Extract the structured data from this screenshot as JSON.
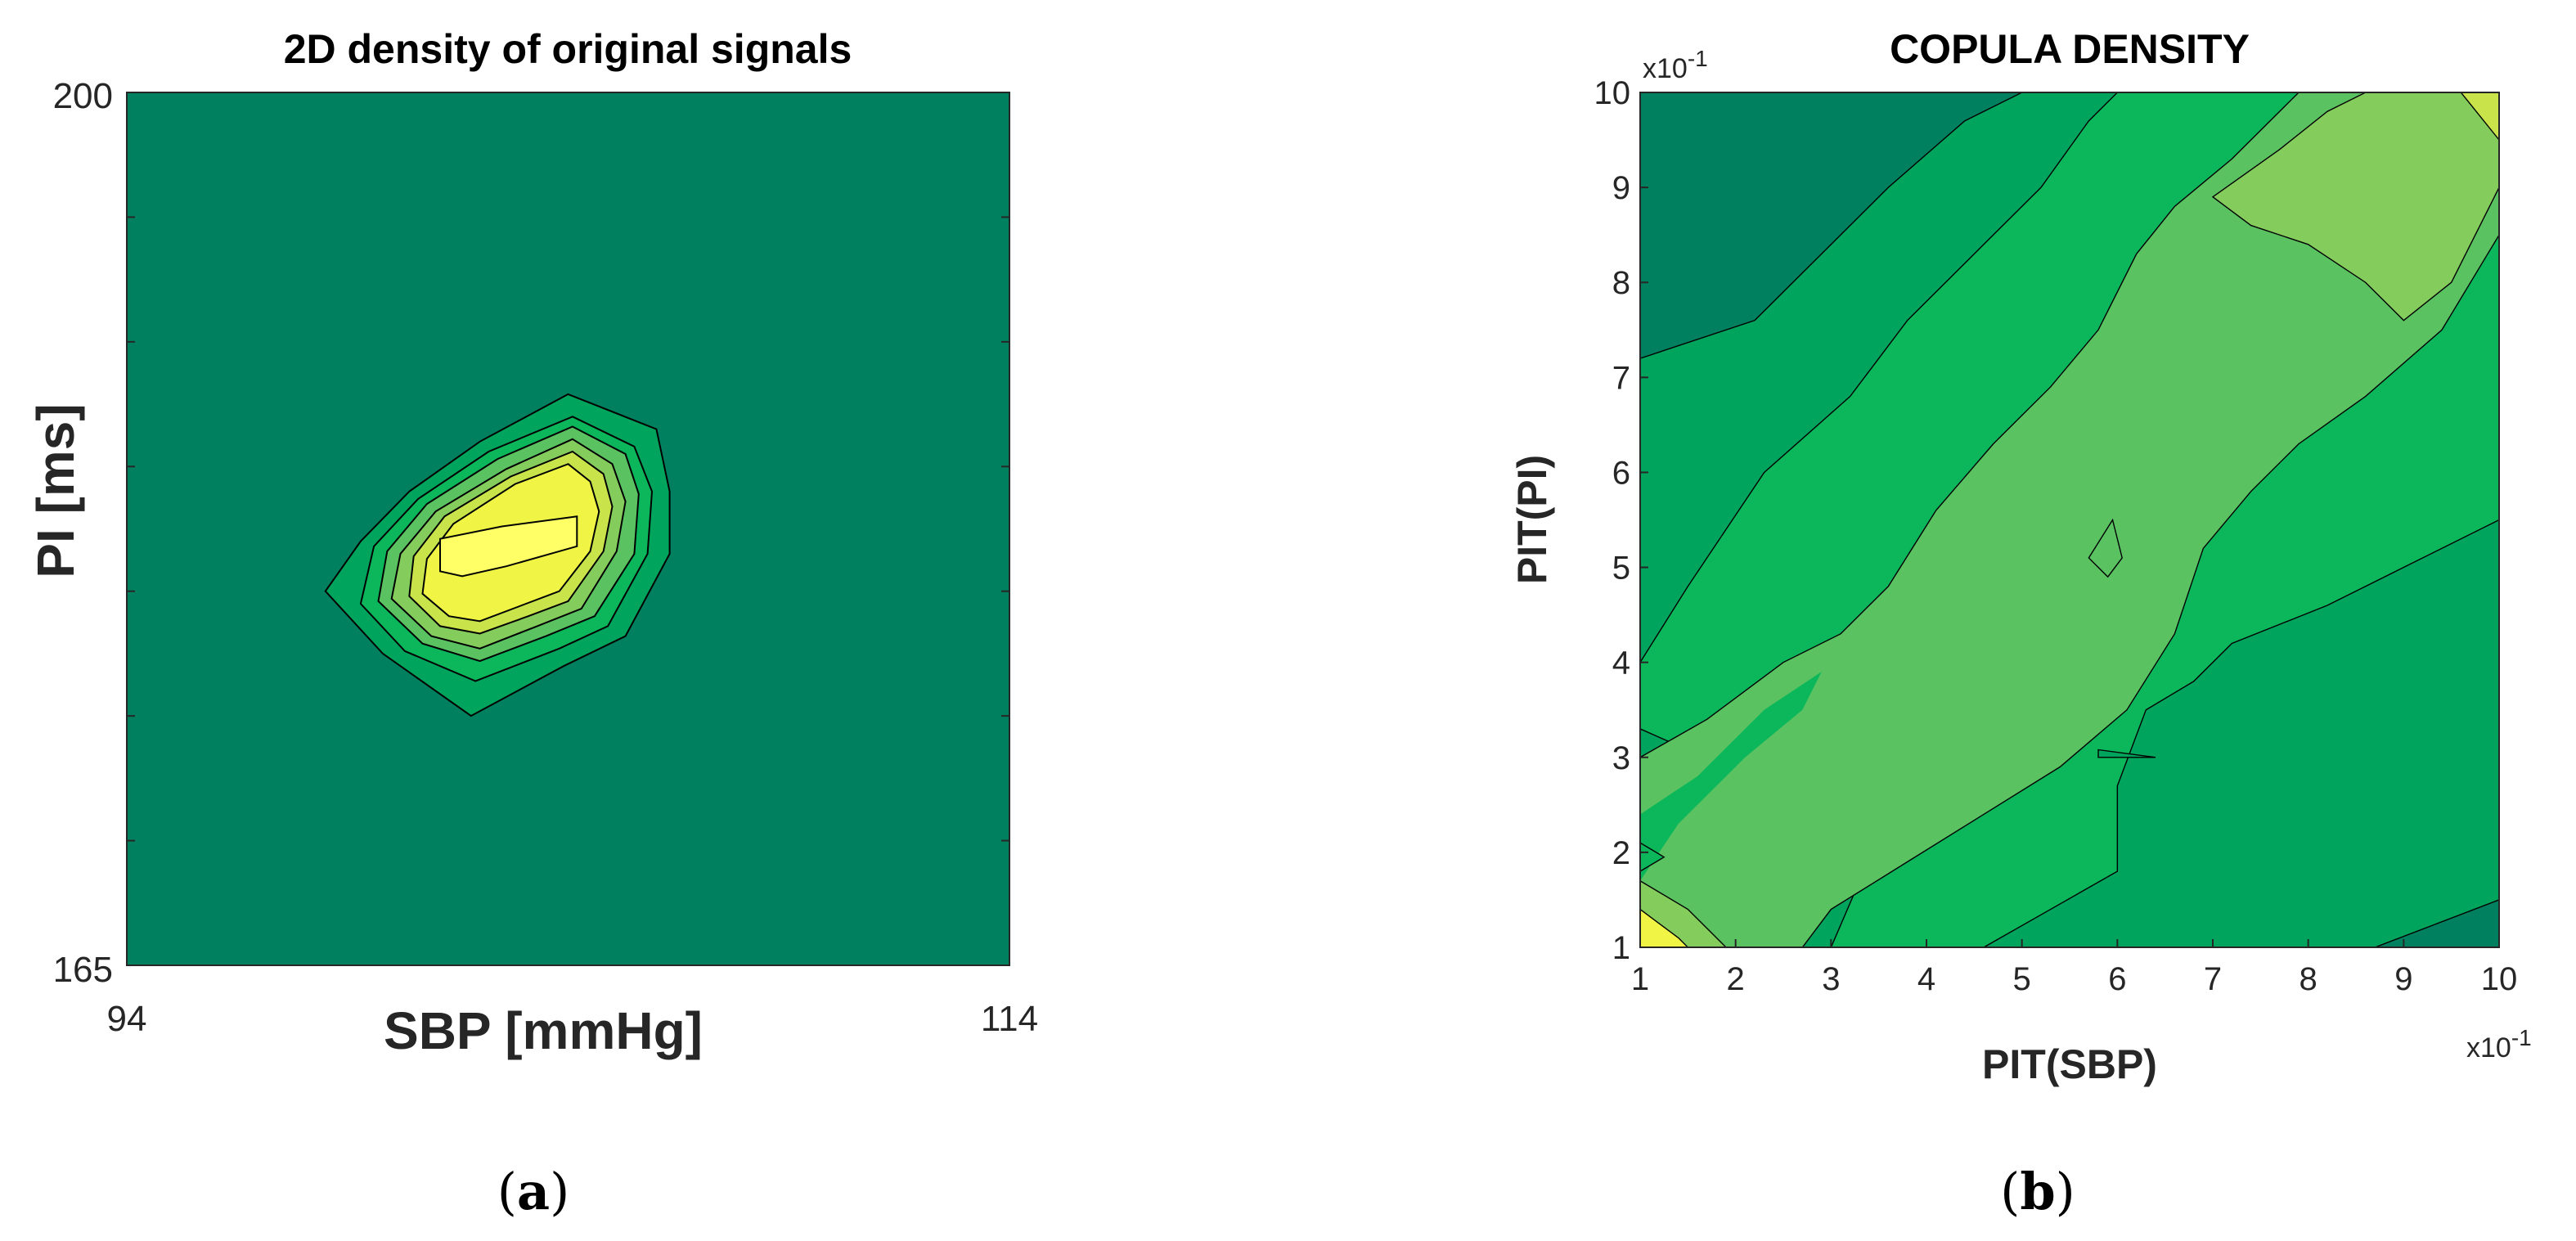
{
  "colors": {
    "level0": "#00805f",
    "level1": "#00a45c",
    "level2": "#0bb75a",
    "level3": "#5bc262",
    "level4": "#84cc5c",
    "level5": "#c8e44a",
    "level6": "#f0f545",
    "level7": "#ffff66",
    "contour_line": "#000000",
    "axis": "#262626"
  },
  "chart_data": [
    {
      "type": "contour",
      "panel_label": "(a)",
      "title": "2D density of original signals",
      "xlabel": "SBP [mmHg]",
      "ylabel": "PI [ms]",
      "xlim": [
        94,
        114
      ],
      "ylim": [
        165,
        200
      ],
      "xtick_labels": [
        "94",
        "114"
      ],
      "ytick_labels": [
        "165",
        "200"
      ],
      "peak": {
        "x": 104,
        "y": 182
      },
      "contours": [
        {
          "level": 1,
          "points": [
            [
              104.0,
              187.9
            ],
            [
              106.0,
              186.5
            ],
            [
              106.3,
              184.0
            ],
            [
              106.3,
              181.5
            ],
            [
              105.3,
              178.2
            ],
            [
              103.9,
              177.0
            ],
            [
              101.8,
              175.0
            ],
            [
              99.8,
              177.5
            ],
            [
              98.5,
              180.0
            ],
            [
              99.3,
              182.0
            ],
            [
              100.4,
              184.0
            ],
            [
              102.0,
              186.0
            ]
          ]
        },
        {
          "level": 2,
          "points": [
            [
              104.1,
              187.0
            ],
            [
              105.5,
              185.8
            ],
            [
              105.9,
              184.0
            ],
            [
              105.8,
              181.5
            ],
            [
              104.9,
              178.6
            ],
            [
              103.8,
              177.7
            ],
            [
              101.9,
              176.4
            ],
            [
              100.3,
              177.6
            ],
            [
              99.3,
              179.5
            ],
            [
              99.6,
              181.8
            ],
            [
              100.6,
              183.7
            ],
            [
              102.2,
              185.6
            ]
          ]
        },
        {
          "level": 3,
          "points": [
            [
              104.1,
              186.6
            ],
            [
              105.3,
              185.5
            ],
            [
              105.6,
              183.9
            ],
            [
              105.5,
              181.5
            ],
            [
              104.6,
              179.0
            ],
            [
              103.5,
              178.2
            ],
            [
              102.0,
              177.2
            ],
            [
              100.7,
              177.9
            ],
            [
              99.7,
              179.6
            ],
            [
              99.9,
              181.6
            ],
            [
              100.8,
              183.5
            ],
            [
              102.4,
              185.3
            ]
          ]
        },
        {
          "level": 4,
          "points": [
            [
              104.1,
              186.1
            ],
            [
              105.0,
              185.1
            ],
            [
              105.3,
              183.6
            ],
            [
              105.1,
              181.6
            ],
            [
              104.3,
              179.3
            ],
            [
              103.3,
              178.6
            ],
            [
              102.0,
              177.7
            ],
            [
              100.9,
              178.2
            ],
            [
              100.0,
              179.7
            ],
            [
              100.2,
              181.5
            ],
            [
              101.0,
              183.2
            ],
            [
              102.6,
              184.9
            ]
          ]
        },
        {
          "level": 5,
          "points": [
            [
              104.1,
              185.6
            ],
            [
              104.8,
              184.7
            ],
            [
              105.0,
              183.4
            ],
            [
              104.8,
              181.6
            ],
            [
              104.0,
              179.6
            ],
            [
              103.1,
              179.0
            ],
            [
              102.0,
              178.3
            ],
            [
              101.1,
              178.6
            ],
            [
              100.4,
              179.8
            ],
            [
              100.5,
              181.4
            ],
            [
              101.2,
              183.0
            ],
            [
              102.7,
              184.6
            ]
          ]
        },
        {
          "level": 6,
          "points": [
            [
              104.0,
              185.1
            ],
            [
              104.5,
              184.4
            ],
            [
              104.7,
              183.2
            ],
            [
              104.5,
              181.6
            ],
            [
              103.8,
              180.0
            ],
            [
              102.9,
              179.4
            ],
            [
              102.0,
              178.8
            ],
            [
              101.3,
              179.0
            ],
            [
              100.7,
              179.9
            ],
            [
              100.8,
              181.3
            ],
            [
              101.4,
              182.7
            ],
            [
              102.8,
              184.3
            ]
          ]
        },
        {
          "level": 7,
          "points": [
            [
              104.2,
              183.0
            ],
            [
              104.2,
              181.8
            ],
            [
              102.6,
              181.0
            ],
            [
              101.6,
              180.6
            ],
            [
              101.1,
              180.8
            ],
            [
              101.1,
              182.1
            ],
            [
              102.5,
              182.6
            ]
          ]
        }
      ]
    },
    {
      "type": "contour",
      "panel_label": "(b)",
      "title": "COPULA DENSITY",
      "xlabel": "PIT(SBP)",
      "ylabel": "PIT(PI)",
      "xlim": [
        1,
        10
      ],
      "ylim": [
        1,
        10
      ],
      "xtick_labels": [
        "1",
        "2",
        "3",
        "4",
        "5",
        "6",
        "7",
        "8",
        "9",
        "10"
      ],
      "ytick_labels": [
        "1",
        "2",
        "3",
        "4",
        "5",
        "6",
        "7",
        "8",
        "9",
        "10"
      ],
      "x_exponent": "x10",
      "y_exponent": "x10",
      "exponent_power": "-1"
    }
  ],
  "panel_labels": {
    "a": "(a)",
    "b": "(b)"
  }
}
